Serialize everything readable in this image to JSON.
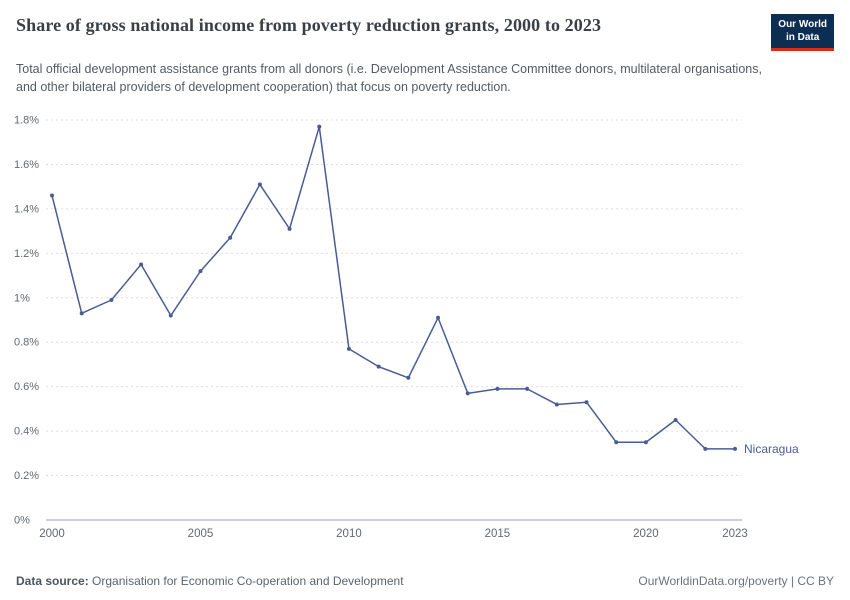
{
  "header": {
    "title": "Share of gross national income from poverty reduction grants, 2000 to 2023",
    "subtitle": "Total official development assistance grants from all donors (i.e. Development Assistance Committee donors, multilateral organisations, and other bilateral providers of development cooperation) that focus on poverty reduction.",
    "logo": {
      "line1": "Our World",
      "line2": "in Data"
    }
  },
  "chart_data": {
    "type": "line",
    "title": "Share of gross national income from poverty reduction grants, 2000 to 2023",
    "x": [
      2000,
      2001,
      2002,
      2003,
      2004,
      2005,
      2006,
      2007,
      2008,
      2009,
      2010,
      2011,
      2012,
      2013,
      2014,
      2015,
      2016,
      2017,
      2018,
      2019,
      2020,
      2021,
      2022,
      2023
    ],
    "series": [
      {
        "name": "Nicaragua",
        "color": "#4A5C94",
        "values": [
          1.46,
          0.93,
          0.99,
          1.15,
          0.92,
          1.12,
          1.27,
          1.51,
          1.31,
          1.77,
          0.77,
          0.69,
          0.64,
          0.91,
          0.57,
          0.59,
          0.59,
          0.52,
          0.53,
          0.35,
          0.35,
          0.45,
          0.32,
          0.32
        ]
      }
    ],
    "x_ticks": [
      2000,
      2005,
      2010,
      2015,
      2020,
      2023
    ],
    "y_ticks": [
      {
        "value": 0,
        "label": "0%"
      },
      {
        "value": 0.2,
        "label": "0.2%"
      },
      {
        "value": 0.4,
        "label": "0.4%"
      },
      {
        "value": 0.6,
        "label": "0.6%"
      },
      {
        "value": 0.8,
        "label": "0.8%"
      },
      {
        "value": 1,
        "label": "1%"
      },
      {
        "value": 1.2,
        "label": "1.2%"
      },
      {
        "value": 1.4,
        "label": "1.4%"
      },
      {
        "value": 1.6,
        "label": "1.6%"
      },
      {
        "value": 1.8,
        "label": "1.8%"
      }
    ],
    "ylim": [
      0,
      1.8
    ],
    "xlim": [
      2000,
      2023
    ],
    "grid": "horizontal-dashed",
    "legend": "line-end-label"
  },
  "footer": {
    "source_label": "Data source:",
    "source_text": "Organisation for Economic Co-operation and Development",
    "right_text": "OurWorldinData.org/poverty | CC BY"
  }
}
